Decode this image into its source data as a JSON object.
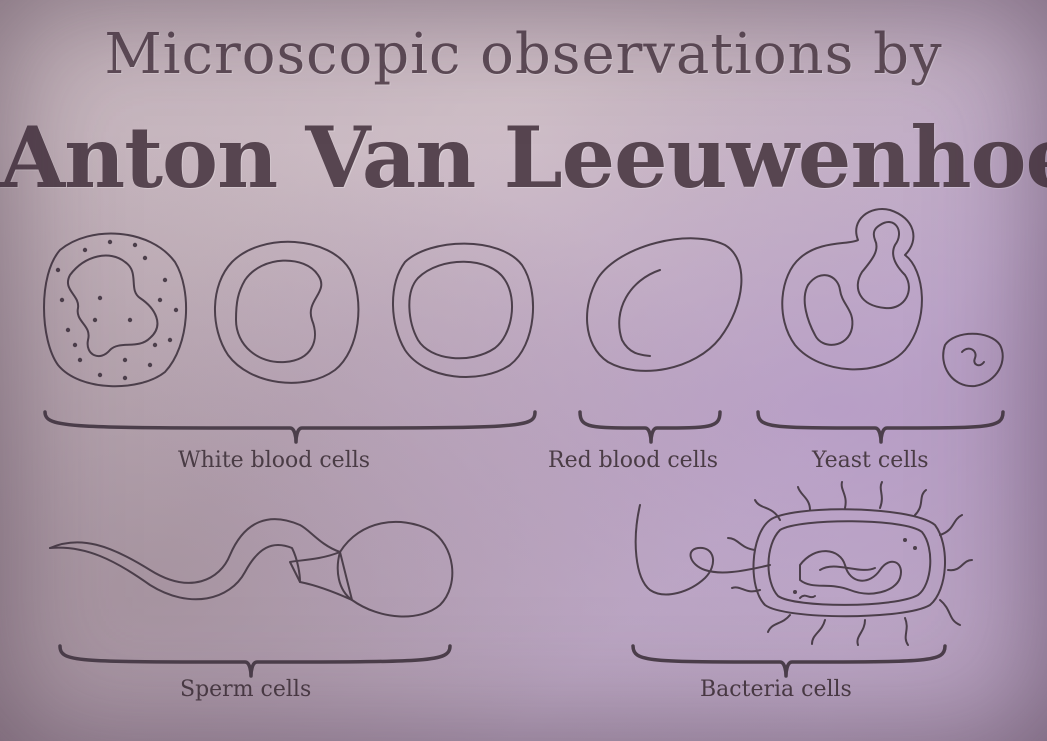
{
  "title": {
    "line1": "Microscopic observations by",
    "line2": "Anton Van Leeuwenhoek"
  },
  "labels": {
    "white_blood_cells": "White blood cells",
    "red_blood_cells": "Red blood cells",
    "yeast_cells": "Yeast cells",
    "sperm_cells": "Sperm cells",
    "bacteria_cells": "Bacteria cells"
  },
  "colors": {
    "ink": "#4c3f4b",
    "paper": "#c7b7c2",
    "cell_fill": "#d8cad4"
  }
}
